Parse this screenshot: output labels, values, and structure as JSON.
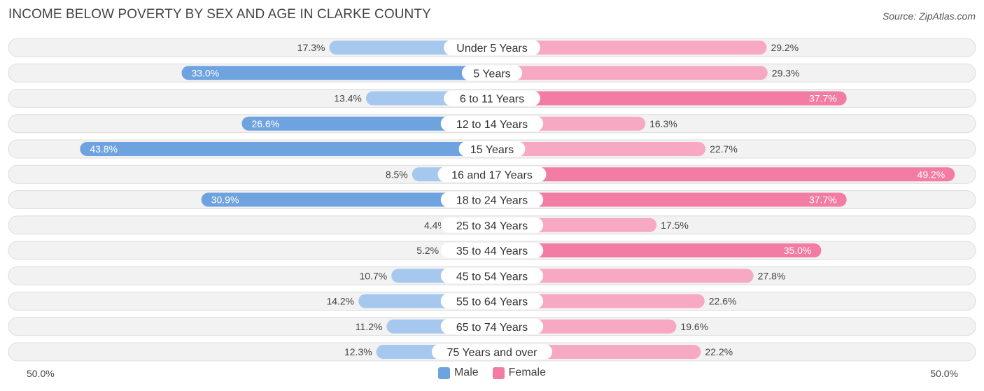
{
  "title": "INCOME BELOW POVERTY BY SEX AND AGE IN CLARKE COUNTY",
  "source": "Source: ZipAtlas.com",
  "axis": {
    "left_label": "50.0%",
    "right_label": "50.0%"
  },
  "legend": {
    "male": "Male",
    "female": "Female"
  },
  "colors": {
    "male_strong": "#6fa3e0",
    "male_light": "#a7c8ee",
    "female_strong": "#f27ca4",
    "female_light": "#f7a9c3",
    "row_bg": "#f2f2f2",
    "row_border": "#dcdcdc"
  },
  "chart_data": {
    "type": "bar",
    "orientation": "horizontal-diverging",
    "title": "INCOME BELOW POVERTY BY SEX AND AGE IN CLARKE COUNTY",
    "xlim": [
      -50,
      50
    ],
    "categories": [
      "Under 5 Years",
      "5 Years",
      "6 to 11 Years",
      "12 to 14 Years",
      "15 Years",
      "16 and 17 Years",
      "18 to 24 Years",
      "25 to 34 Years",
      "35 to 44 Years",
      "45 to 54 Years",
      "55 to 64 Years",
      "65 to 74 Years",
      "75 Years and over"
    ],
    "series": [
      {
        "name": "Male",
        "values": [
          17.3,
          33.0,
          13.4,
          26.6,
          43.8,
          8.5,
          30.9,
          4.4,
          5.2,
          10.7,
          14.2,
          11.2,
          12.3
        ],
        "labels": [
          "17.3%",
          "33.0%",
          "13.4%",
          "26.6%",
          "43.8%",
          "8.5%",
          "30.9%",
          "4.4%",
          "5.2%",
          "10.7%",
          "14.2%",
          "11.2%",
          "12.3%"
        ]
      },
      {
        "name": "Female",
        "values": [
          29.2,
          29.3,
          37.7,
          16.3,
          22.7,
          49.2,
          37.7,
          17.5,
          35.0,
          27.8,
          22.6,
          19.6,
          22.2
        ],
        "labels": [
          "29.2%",
          "29.3%",
          "37.7%",
          "16.3%",
          "22.7%",
          "49.2%",
          "37.7%",
          "17.5%",
          "35.0%",
          "27.8%",
          "22.6%",
          "19.6%",
          "22.2%"
        ]
      }
    ]
  }
}
